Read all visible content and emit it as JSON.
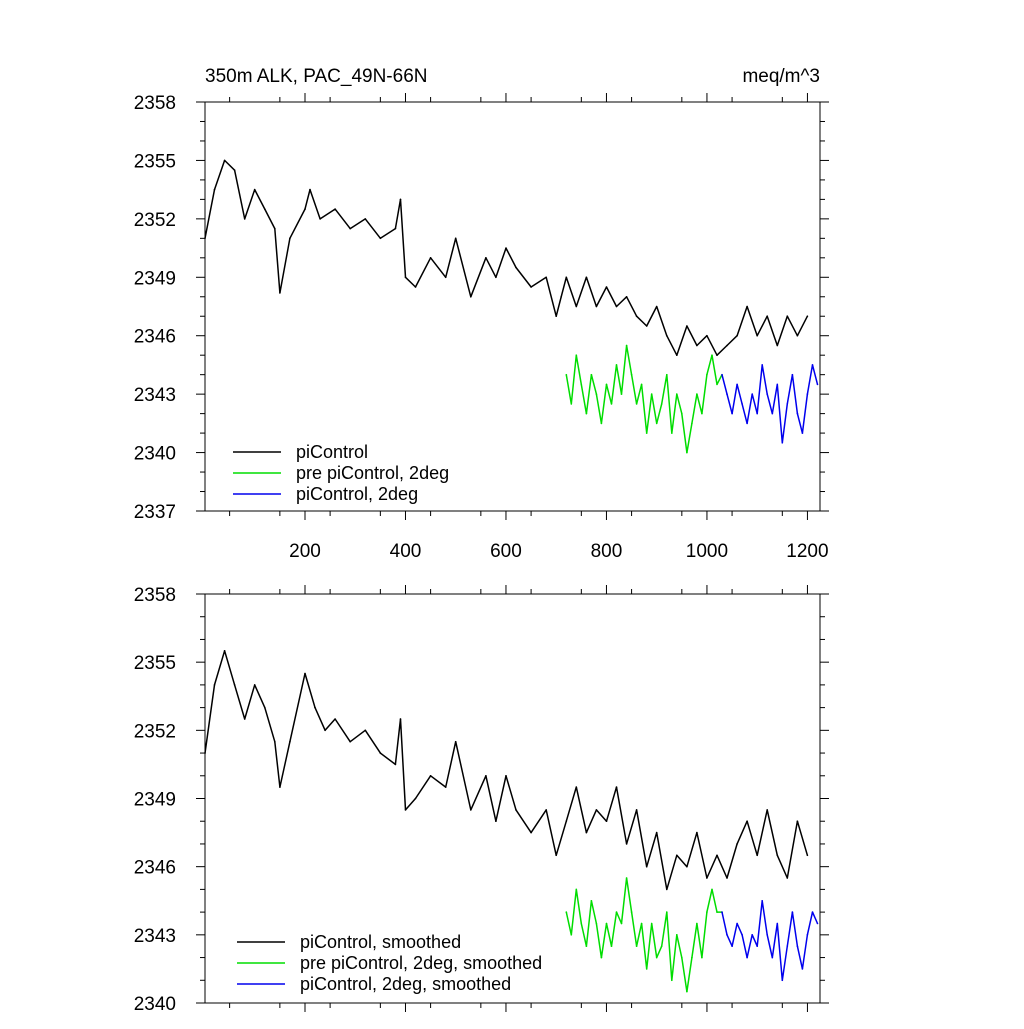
{
  "chart_data": [
    {
      "type": "line",
      "title": "350m ALK, PAC_49N-66N",
      "units": "meq/m^3",
      "xlim": [
        1,
        1225
      ],
      "ylim": [
        2337,
        2358
      ],
      "yticks": [
        2337,
        2340,
        2343,
        2346,
        2349,
        2352,
        2355,
        2358
      ],
      "xticks": [
        200,
        400,
        600,
        800,
        1000,
        1200
      ],
      "legend_position": "lower-left",
      "series": [
        {
          "name": "piControl",
          "color": "#000000",
          "x": [
            1,
            20,
            40,
            60,
            80,
            100,
            120,
            140,
            150,
            170,
            200,
            210,
            230,
            260,
            290,
            320,
            350,
            380,
            390,
            400,
            420,
            450,
            480,
            500,
            530,
            560,
            580,
            600,
            620,
            650,
            680,
            700,
            710,
            720,
            740,
            760,
            780,
            800,
            820,
            840,
            860,
            880,
            900,
            920,
            940,
            960,
            980,
            1000,
            1020,
            1040,
            1060,
            1080,
            1100,
            1120,
            1140,
            1160,
            1180,
            1200
          ],
          "values": [
            2351.0,
            2353.5,
            2355.0,
            2354.5,
            2352.0,
            2353.5,
            2352.5,
            2351.5,
            2348.2,
            2351.0,
            2352.5,
            2353.5,
            2352.0,
            2352.5,
            2351.5,
            2352.0,
            2351.0,
            2351.5,
            2353.0,
            2349.0,
            2348.5,
            2350.0,
            2349.0,
            2351.0,
            2348.0,
            2350.0,
            2349.0,
            2350.5,
            2349.5,
            2348.5,
            2349.0,
            2347.0,
            2348.0,
            2349.0,
            2347.5,
            2349.0,
            2347.5,
            2348.5,
            2347.5,
            2348.0,
            2347.0,
            2346.5,
            2347.5,
            2346.0,
            2345.0,
            2346.5,
            2345.5,
            2346.0,
            2345.0,
            2345.5,
            2346.0,
            2347.5,
            2346.0,
            2347.0,
            2345.5,
            2347.0,
            2346.0,
            2347.0
          ]
        },
        {
          "name": "pre piControl, 2deg",
          "color": "#00dd00",
          "x": [
            720,
            730,
            740,
            750,
            760,
            770,
            780,
            790,
            800,
            810,
            820,
            830,
            840,
            850,
            860,
            870,
            880,
            890,
            900,
            910,
            920,
            930,
            940,
            950,
            960,
            970,
            980,
            990,
            1000,
            1010,
            1020,
            1030
          ],
          "values": [
            2344.0,
            2342.5,
            2345.0,
            2343.5,
            2342.0,
            2344.0,
            2343.0,
            2341.5,
            2343.5,
            2342.5,
            2344.5,
            2343.0,
            2345.5,
            2344.0,
            2342.5,
            2343.5,
            2341.0,
            2343.0,
            2341.5,
            2342.5,
            2344.0,
            2341.0,
            2343.0,
            2342.0,
            2340.0,
            2341.5,
            2343.0,
            2342.0,
            2344.0,
            2345.0,
            2343.5,
            2344.0
          ]
        },
        {
          "name": "piControl, 2deg",
          "color": "#0000ee",
          "x": [
            1030,
            1040,
            1050,
            1060,
            1070,
            1080,
            1090,
            1100,
            1110,
            1120,
            1130,
            1140,
            1150,
            1160,
            1170,
            1180,
            1190,
            1200,
            1210,
            1220
          ],
          "values": [
            2344.0,
            2343.0,
            2342.0,
            2343.5,
            2342.5,
            2341.5,
            2343.0,
            2342.0,
            2344.5,
            2343.0,
            2342.0,
            2343.5,
            2340.5,
            2342.5,
            2344.0,
            2342.0,
            2341.0,
            2343.0,
            2344.5,
            2343.5
          ]
        }
      ]
    },
    {
      "type": "line",
      "xlim": [
        1,
        1225
      ],
      "ylim": [
        2340,
        2358
      ],
      "yticks": [
        2340,
        2343,
        2346,
        2349,
        2352,
        2355,
        2358
      ],
      "xticks": [
        200,
        400,
        600,
        800,
        1000,
        1200
      ],
      "legend_position": "lower-left",
      "series": [
        {
          "name": "piControl, smoothed",
          "color": "#000000",
          "x": [
            1,
            20,
            40,
            60,
            80,
            100,
            120,
            140,
            150,
            170,
            200,
            220,
            240,
            260,
            290,
            320,
            350,
            380,
            390,
            400,
            420,
            450,
            480,
            500,
            530,
            560,
            580,
            600,
            620,
            650,
            680,
            700,
            720,
            740,
            760,
            780,
            800,
            820,
            840,
            860,
            880,
            900,
            920,
            940,
            960,
            980,
            1000,
            1020,
            1040,
            1060,
            1080,
            1100,
            1120,
            1140,
            1160,
            1180,
            1200
          ],
          "values": [
            2351.0,
            2354.0,
            2355.5,
            2354.0,
            2352.5,
            2354.0,
            2353.0,
            2351.5,
            2349.5,
            2351.5,
            2354.5,
            2353.0,
            2352.0,
            2352.5,
            2351.5,
            2352.0,
            2351.0,
            2350.5,
            2352.5,
            2348.5,
            2349.0,
            2350.0,
            2349.5,
            2351.5,
            2348.5,
            2350.0,
            2348.0,
            2350.0,
            2348.5,
            2347.5,
            2348.5,
            2346.5,
            2348.0,
            2349.5,
            2347.5,
            2348.5,
            2348.0,
            2349.5,
            2347.0,
            2348.5,
            2346.0,
            2347.5,
            2345.0,
            2346.5,
            2346.0,
            2347.5,
            2345.5,
            2346.5,
            2345.5,
            2347.0,
            2348.0,
            2346.5,
            2348.5,
            2346.5,
            2345.5,
            2348.0,
            2346.5
          ]
        },
        {
          "name": "pre piControl, 2deg, smoothed",
          "color": "#00dd00",
          "x": [
            720,
            730,
            740,
            750,
            760,
            770,
            780,
            790,
            800,
            810,
            820,
            830,
            840,
            850,
            860,
            870,
            880,
            890,
            900,
            910,
            920,
            930,
            940,
            950,
            960,
            970,
            980,
            990,
            1000,
            1010,
            1020,
            1030
          ],
          "values": [
            2344.0,
            2343.0,
            2345.0,
            2343.5,
            2342.5,
            2344.5,
            2343.5,
            2342.0,
            2343.5,
            2342.5,
            2344.0,
            2343.5,
            2345.5,
            2344.0,
            2342.5,
            2343.5,
            2341.5,
            2343.5,
            2342.0,
            2342.5,
            2344.0,
            2341.0,
            2343.0,
            2342.0,
            2340.5,
            2342.0,
            2343.5,
            2342.0,
            2344.0,
            2345.0,
            2344.0,
            2344.0
          ]
        },
        {
          "name": "piControl, 2deg, smoothed",
          "color": "#0000ee",
          "x": [
            1030,
            1040,
            1050,
            1060,
            1070,
            1080,
            1090,
            1100,
            1110,
            1120,
            1130,
            1140,
            1150,
            1160,
            1170,
            1180,
            1190,
            1200,
            1210,
            1220
          ],
          "values": [
            2344.0,
            2343.0,
            2342.5,
            2343.5,
            2343.0,
            2342.0,
            2343.0,
            2342.5,
            2344.5,
            2343.0,
            2342.0,
            2343.5,
            2341.0,
            2342.5,
            2344.0,
            2342.5,
            2341.5,
            2343.0,
            2344.0,
            2343.5
          ]
        }
      ]
    }
  ]
}
